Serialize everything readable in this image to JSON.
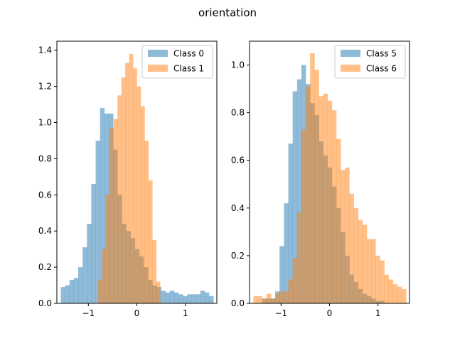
{
  "figure": {
    "title": "orientation"
  },
  "colors": {
    "blue": "#1f77b4",
    "orange": "#ff7f0e"
  },
  "chart_data": [
    {
      "type": "histogram",
      "title": "",
      "xlabel": "",
      "ylabel": "",
      "xlim": [
        -1.65,
        1.65
      ],
      "ylim": [
        0,
        1.45
      ],
      "xticks": [
        -1,
        0,
        1
      ],
      "yticks": [
        0.0,
        0.2,
        0.4,
        0.6,
        0.8,
        1.0,
        1.2,
        1.4
      ],
      "ytick_labels": [
        "0.0",
        "0.2",
        "0.4",
        "0.6",
        "0.8",
        "1.0",
        "1.2",
        "1.4"
      ],
      "xtick_labels": [
        "−1",
        "0",
        "1"
      ],
      "legend_position": "upper right",
      "series": [
        {
          "name": "Class 0",
          "color": "#1f77b4",
          "opacity": 0.5,
          "bin_edges": [
            -1.57,
            -1.48,
            -1.39,
            -1.3,
            -1.21,
            -1.12,
            -1.03,
            -0.94,
            -0.85,
            -0.76,
            -0.67,
            -0.58,
            -0.49,
            -0.4,
            -0.31,
            -0.22,
            -0.13,
            -0.04,
            0.05,
            0.14,
            0.23,
            0.32,
            0.41,
            0.5,
            0.59,
            0.68,
            0.77,
            0.86,
            0.95,
            1.04,
            1.13,
            1.22,
            1.31,
            1.4,
            1.49,
            1.58
          ],
          "values": [
            0.09,
            0.1,
            0.13,
            0.14,
            0.2,
            0.31,
            0.44,
            0.66,
            0.9,
            1.08,
            1.05,
            1.05,
            0.85,
            0.6,
            0.44,
            0.4,
            0.36,
            0.3,
            0.26,
            0.2,
            0.13,
            0.1,
            0.09,
            0.07,
            0.06,
            0.07,
            0.06,
            0.05,
            0.04,
            0.05,
            0.05,
            0.05,
            0.07,
            0.06,
            0.04
          ]
        },
        {
          "name": "Class 1",
          "color": "#ff7f0e",
          "opacity": 0.5,
          "bin_edges": [
            -0.8,
            -0.72,
            -0.64,
            -0.56,
            -0.48,
            -0.4,
            -0.32,
            -0.24,
            -0.16,
            -0.08,
            0.0,
            0.08,
            0.16,
            0.24,
            0.32,
            0.4,
            0.48
          ],
          "values": [
            0.13,
            0.3,
            0.6,
            0.97,
            1.02,
            1.15,
            1.25,
            1.33,
            1.38,
            1.3,
            1.2,
            1.09,
            0.9,
            0.68,
            0.35,
            0.12,
            0.02
          ]
        }
      ]
    },
    {
      "type": "histogram",
      "title": "",
      "xlabel": "",
      "ylabel": "",
      "xlim": [
        -1.65,
        1.65
      ],
      "ylim": [
        0,
        1.1
      ],
      "xticks": [
        -1,
        0,
        1
      ],
      "yticks": [
        0.0,
        0.2,
        0.4,
        0.6,
        0.8,
        1.0
      ],
      "ytick_labels": [
        "0.0",
        "0.2",
        "0.4",
        "0.6",
        "0.8",
        "1.0"
      ],
      "xtick_labels": [
        "−1",
        "0",
        "1"
      ],
      "legend_position": "upper right",
      "series": [
        {
          "name": "Class 5",
          "color": "#1f77b4",
          "opacity": 0.5,
          "bin_edges": [
            -1.57,
            -1.48,
            -1.39,
            -1.3,
            -1.21,
            -1.12,
            -1.03,
            -0.94,
            -0.85,
            -0.76,
            -0.67,
            -0.58,
            -0.49,
            -0.4,
            -0.31,
            -0.22,
            -0.13,
            -0.04,
            0.05,
            0.14,
            0.23,
            0.32,
            0.41,
            0.5,
            0.59,
            0.68,
            0.77,
            0.86,
            0.95,
            1.04,
            1.13,
            1.22,
            1.31,
            1.4,
            1.49,
            1.58
          ],
          "values": [
            0,
            0,
            0.02,
            0.02,
            0.02,
            0.05,
            0.24,
            0.42,
            0.67,
            0.89,
            0.94,
            1.0,
            0.92,
            0.84,
            0.79,
            0.68,
            0.62,
            0.57,
            0.49,
            0.4,
            0.3,
            0.2,
            0.12,
            0.09,
            0.06,
            0.04,
            0.03,
            0.02,
            0.01,
            0.01,
            0,
            0,
            0,
            0,
            0
          ]
        },
        {
          "name": "Class 6",
          "color": "#ff7f0e",
          "opacity": 0.5,
          "bin_edges": [
            -1.57,
            -1.48,
            -1.39,
            -1.3,
            -1.21,
            -1.12,
            -1.03,
            -0.94,
            -0.85,
            -0.76,
            -0.67,
            -0.58,
            -0.49,
            -0.4,
            -0.31,
            -0.22,
            -0.13,
            -0.04,
            0.05,
            0.14,
            0.23,
            0.32,
            0.41,
            0.5,
            0.59,
            0.68,
            0.77,
            0.86,
            0.95,
            1.04,
            1.13,
            1.22,
            1.31,
            1.4,
            1.49,
            1.58
          ],
          "values": [
            0.03,
            0.03,
            0.02,
            0.04,
            0.02,
            0.04,
            0.05,
            0.05,
            0.1,
            0.19,
            0.38,
            0.73,
            0.91,
            1.05,
            0.98,
            0.87,
            0.88,
            0.85,
            0.81,
            0.69,
            0.56,
            0.57,
            0.46,
            0.4,
            0.35,
            0.33,
            0.27,
            0.27,
            0.2,
            0.18,
            0.12,
            0.1,
            0.08,
            0.07,
            0.06
          ]
        }
      ]
    }
  ]
}
